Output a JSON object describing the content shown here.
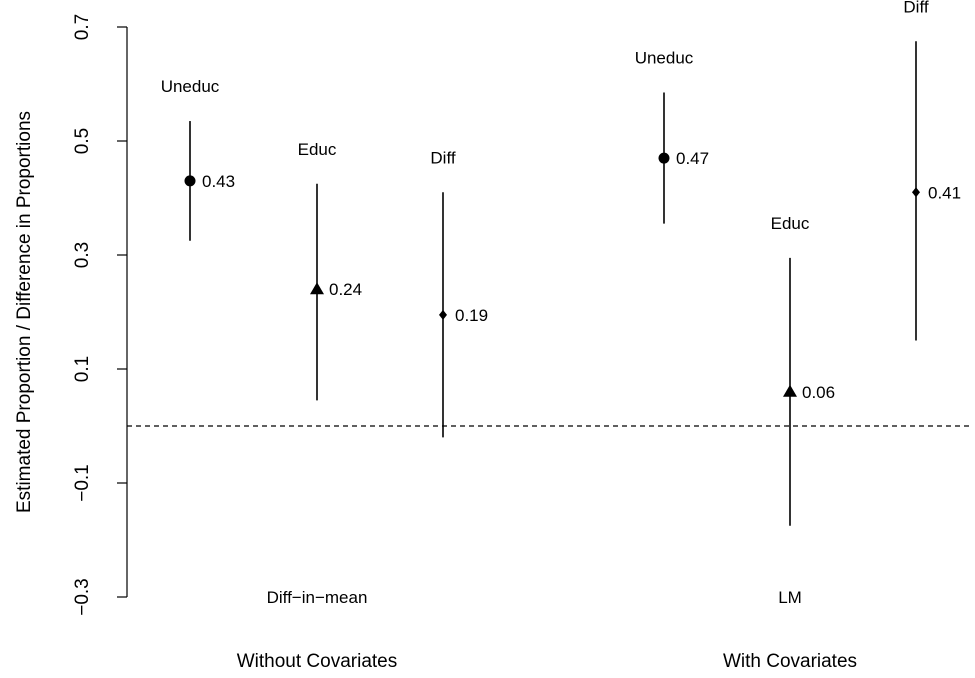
{
  "chart_data": {
    "type": "scatter",
    "title": "",
    "xlabel": "",
    "ylabel": "Estimated Proportion / Difference in Proportions",
    "ylim": [
      -0.3,
      0.7
    ],
    "yticks": [
      "-0.3",
      "-0.1",
      "0.1",
      "0.3",
      "0.5",
      "0.7"
    ],
    "reference_line": 0,
    "groups": [
      {
        "label": "Without Covariates",
        "method": "Diff−in−mean",
        "points": [
          {
            "name": "Uneduc",
            "estimate": 0.43,
            "lower": 0.325,
            "upper": 0.535,
            "marker": "circle",
            "value_label": "0.43"
          },
          {
            "name": "Educ",
            "estimate": 0.24,
            "lower": 0.045,
            "upper": 0.425,
            "marker": "triangle",
            "value_label": "0.24"
          },
          {
            "name": "Diff",
            "estimate": 0.195,
            "lower": -0.02,
            "upper": 0.41,
            "marker": "diamond",
            "value_label": "0.19"
          }
        ]
      },
      {
        "label": "With Covariates",
        "method": "LM",
        "points": [
          {
            "name": "Uneduc",
            "estimate": 0.47,
            "lower": 0.355,
            "upper": 0.585,
            "marker": "circle",
            "value_label": "0.47"
          },
          {
            "name": "Educ",
            "estimate": 0.06,
            "lower": -0.175,
            "upper": 0.295,
            "marker": "triangle",
            "value_label": "0.06"
          },
          {
            "name": "Diff",
            "estimate": 0.41,
            "lower": 0.15,
            "upper": 0.675,
            "marker": "diamond",
            "value_label": "0.41"
          }
        ]
      }
    ]
  }
}
